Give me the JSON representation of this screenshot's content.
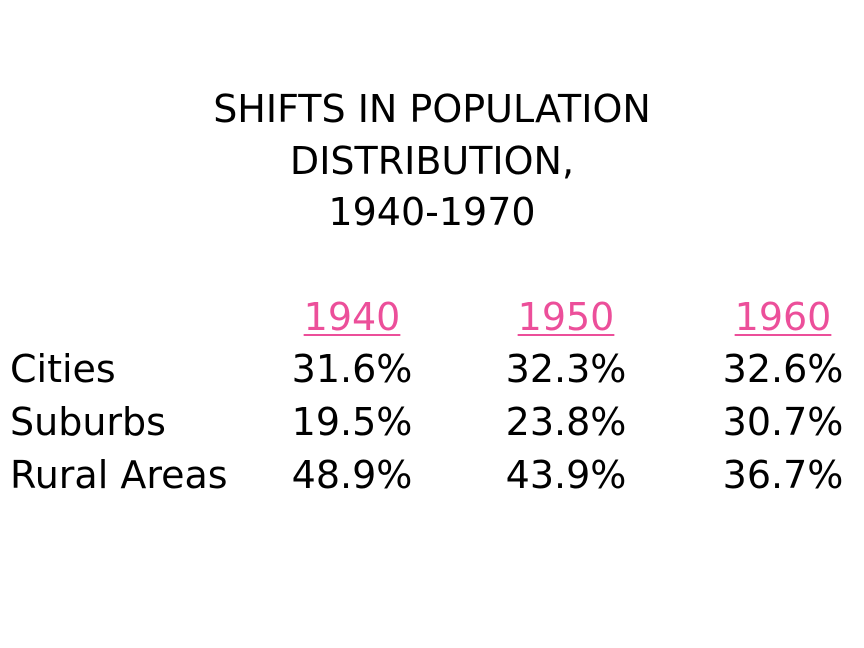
{
  "title": {
    "lines": [
      "SHIFTS IN POPULATION",
      "DISTRIBUTION,",
      "1940-1970"
    ]
  },
  "table": {
    "header": [
      "1940",
      "1950",
      "1960"
    ],
    "rows": [
      [
        "Cities",
        "31.6%",
        "32.3%",
        "32.6%"
      ],
      [
        "Suburbs",
        "19.5%",
        "23.8%",
        "30.7%"
      ],
      [
        "Rural Areas",
        "48.9%",
        "43.9%",
        "36.7%"
      ]
    ]
  }
}
